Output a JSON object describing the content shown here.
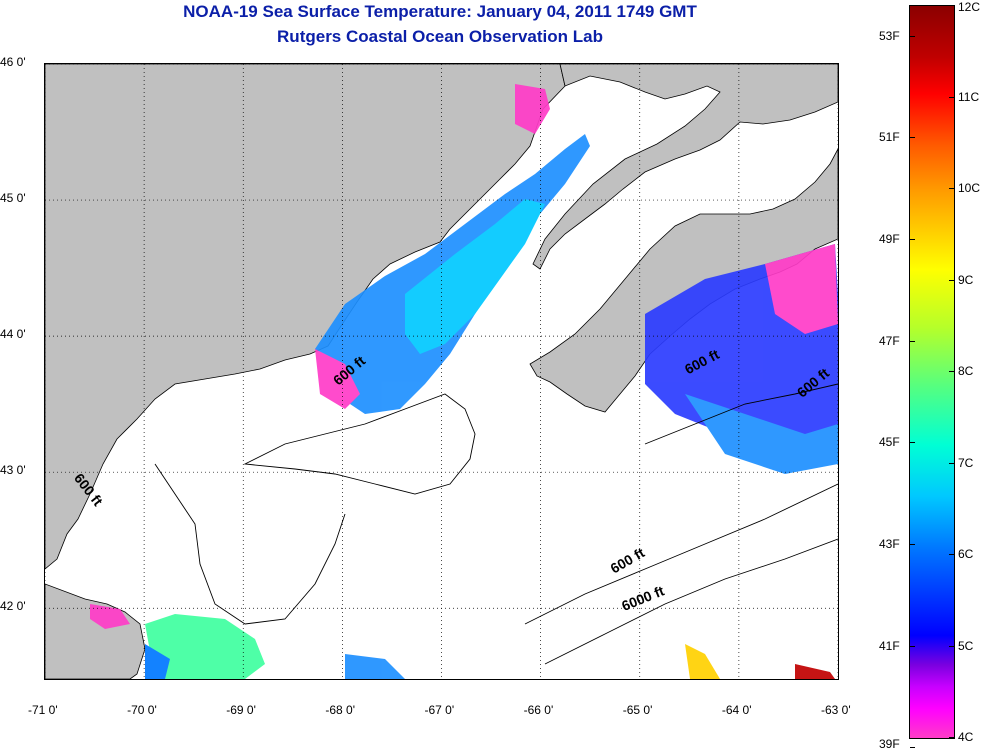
{
  "header": {
    "title_line1": "NOAA-19 Sea Surface Temperature:  January 04, 2011 1749 GMT",
    "title_line2": "Rutgers Coastal Ocean Observation Lab"
  },
  "map": {
    "lon_range": [
      -71,
      -63
    ],
    "lat_range": [
      41.48,
      46.0
    ],
    "lat_ticks": [
      {
        "value": 46,
        "label": "46 0'"
      },
      {
        "value": 45,
        "label": "45 0'"
      },
      {
        "value": 44,
        "label": "44 0'"
      },
      {
        "value": 43,
        "label": "43 0'"
      },
      {
        "value": 42,
        "label": "42 0'"
      }
    ],
    "lon_ticks": [
      {
        "value": -71,
        "label": "-71 0'"
      },
      {
        "value": -70,
        "label": "-70 0'"
      },
      {
        "value": -69,
        "label": "-69 0'"
      },
      {
        "value": -68,
        "label": "-68 0'"
      },
      {
        "value": -67,
        "label": "-67 0'"
      },
      {
        "value": -66,
        "label": "-66 0'"
      },
      {
        "value": -65,
        "label": "-65 0'"
      },
      {
        "value": -64,
        "label": "-64 0'"
      },
      {
        "value": -63,
        "label": "-63 0'"
      }
    ],
    "contour_labels": [
      {
        "text": "600 ft",
        "lon": -67.9,
        "lat": 43.72,
        "angle": -40
      },
      {
        "text": "600 ft",
        "lon": -70.6,
        "lat": 42.85,
        "angle": 52
      },
      {
        "text": "600 ft",
        "lon": -64.35,
        "lat": 43.78,
        "angle": -28
      },
      {
        "text": "600 ft",
        "lon": -63.22,
        "lat": 43.63,
        "angle": -40
      },
      {
        "text": "600 ft",
        "lon": -65.1,
        "lat": 42.32,
        "angle": -30
      },
      {
        "text": "6000 ft",
        "lon": -64.95,
        "lat": 42.04,
        "angle": -22
      }
    ],
    "colors": {
      "land": "#c0c0c0",
      "ocean_nodata": "#ffffff",
      "coastline": "#000000",
      "grid": "#000000"
    }
  },
  "colorbar": {
    "celsius_range": [
      4,
      12
    ],
    "celsius_ticks": [
      "12C",
      "11C",
      "10C",
      "9C",
      "8C",
      "7C",
      "6C",
      "5C",
      "4C"
    ],
    "fahrenheit_ticks": [
      "53F",
      "51F",
      "49F",
      "47F",
      "45F",
      "43F",
      "41F",
      "39F"
    ],
    "fahrenheit_values": [
      53,
      51,
      49,
      47,
      45,
      43,
      41,
      39
    ]
  }
}
